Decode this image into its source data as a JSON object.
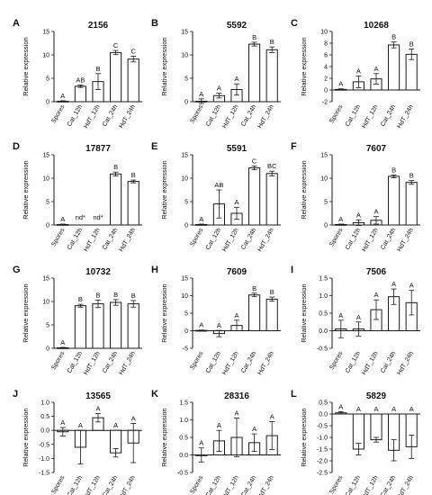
{
  "figure": {
    "ylabel": "Relative expression",
    "categories": [
      "Spores",
      "Cat_12h",
      "HdT_12h",
      "Cat_24h",
      "HdT_24h"
    ],
    "colors": {
      "bar": "#ffffff",
      "stroke": "#1a1a1a",
      "text": "#111111"
    }
  },
  "chart_data": [
    {
      "type": "bar",
      "panel": "A",
      "title": "2156",
      "ylim": [
        0,
        15
      ],
      "yticks": [
        0,
        5,
        10,
        15
      ],
      "values": [
        0.1,
        3.3,
        4.3,
        10.5,
        9.1
      ],
      "errors": [
        0.1,
        0.25,
        1.7,
        0.45,
        0.6
      ],
      "letters": [
        "A",
        "AB",
        "B",
        "C",
        "C"
      ]
    },
    {
      "type": "bar",
      "panel": "B",
      "title": "5592",
      "ylim": [
        0,
        15
      ],
      "yticks": [
        0,
        5,
        10,
        15
      ],
      "values": [
        0.1,
        1.3,
        2.6,
        12.3,
        11.1
      ],
      "errors": [
        0.5,
        0.5,
        1.2,
        0.4,
        0.6
      ],
      "letters": [
        "A",
        "A",
        "A",
        "B",
        "B"
      ]
    },
    {
      "type": "bar",
      "panel": "C",
      "title": "10268",
      "ylim": [
        -2,
        10
      ],
      "yticks": [
        -2,
        0,
        2,
        4,
        6,
        8,
        10
      ],
      "values": [
        0.1,
        1.4,
        1.9,
        7.7,
        6.1
      ],
      "errors": [
        0.1,
        1.0,
        0.9,
        0.5,
        0.9
      ],
      "letters": [
        "A",
        "A",
        "A",
        "B",
        "B"
      ]
    },
    {
      "type": "bar",
      "panel": "D",
      "title": "17877",
      "ylim": [
        0,
        15
      ],
      "yticks": [
        0,
        5,
        10,
        15
      ],
      "values": [
        0.1,
        null,
        null,
        10.9,
        9.3
      ],
      "errors": [
        0.1,
        null,
        null,
        0.4,
        0.3
      ],
      "letters": [
        "A",
        "nd*",
        "nd*",
        "B",
        "B"
      ]
    },
    {
      "type": "bar",
      "panel": "E",
      "title": "5591",
      "ylim": [
        0,
        15
      ],
      "yticks": [
        0,
        5,
        10,
        15
      ],
      "values": [
        0.1,
        4.5,
        2.5,
        12.2,
        11.0
      ],
      "errors": [
        0.1,
        3.0,
        1.3,
        0.4,
        0.5
      ],
      "letters": [
        "A",
        "AB",
        "A",
        "C",
        "BC"
      ]
    },
    {
      "type": "bar",
      "panel": "F",
      "title": "7607",
      "ylim": [
        0,
        15
      ],
      "yticks": [
        0,
        5,
        10,
        15
      ],
      "values": [
        0.1,
        0.5,
        1.0,
        10.4,
        9.1
      ],
      "errors": [
        0.1,
        0.6,
        0.8,
        0.3,
        0.4
      ],
      "letters": [
        "A",
        "A",
        "A",
        "B",
        "B"
      ]
    },
    {
      "type": "bar",
      "panel": "G",
      "title": "10732",
      "ylim": [
        0,
        15
      ],
      "yticks": [
        0,
        5,
        10,
        15
      ],
      "values": [
        0.1,
        9.1,
        9.5,
        9.8,
        9.5
      ],
      "errors": [
        0.1,
        0.3,
        0.8,
        0.6,
        0.7
      ],
      "letters": [
        "A",
        "B",
        "B",
        "B",
        "B"
      ]
    },
    {
      "type": "bar",
      "panel": "H",
      "title": "7609",
      "ylim": [
        -5,
        15
      ],
      "yticks": [
        -5,
        0,
        5,
        10,
        15
      ],
      "values": [
        0.1,
        -0.8,
        1.5,
        10.2,
        9.0
      ],
      "errors": [
        0.1,
        0.9,
        1.5,
        0.5,
        0.6
      ],
      "letters": [
        "A",
        "A",
        "A",
        "B",
        "B"
      ]
    },
    {
      "type": "bar",
      "panel": "I",
      "title": "7506",
      "ylim": [
        -0.5,
        1.5
      ],
      "yticks": [
        -0.5,
        0.0,
        0.5,
        1.0,
        1.5
      ],
      "values": [
        0.05,
        0.05,
        0.6,
        0.97,
        0.8
      ],
      "errors": [
        0.25,
        0.2,
        0.28,
        0.22,
        0.35
      ],
      "letters": [
        "A",
        "A",
        "A",
        "A",
        "A"
      ]
    },
    {
      "type": "bar",
      "panel": "J",
      "title": "13565",
      "ylim": [
        -1.5,
        1.0
      ],
      "yticks": [
        -1.5,
        -1.0,
        -0.5,
        0.0,
        0.5,
        1.0
      ],
      "values": [
        -0.05,
        -0.6,
        0.45,
        -0.8,
        -0.45
      ],
      "errors": [
        0.15,
        0.6,
        0.15,
        0.15,
        0.7
      ],
      "letters": [
        "A",
        "A",
        "A",
        "A",
        "A"
      ]
    },
    {
      "type": "bar",
      "panel": "K",
      "title": "28316",
      "ylim": [
        -0.5,
        1.5
      ],
      "yticks": [
        -0.5,
        0.0,
        0.5,
        1.0,
        1.5
      ],
      "values": [
        0.0,
        0.4,
        0.5,
        0.35,
        0.55
      ],
      "errors": [
        0.2,
        0.3,
        0.55,
        0.25,
        0.4
      ],
      "letters": [
        "A",
        "A",
        "A",
        "A",
        "A"
      ]
    },
    {
      "type": "bar",
      "panel": "L",
      "title": "5829",
      "ylim": [
        -2.5,
        0.5
      ],
      "yticks": [
        -2.5,
        -2.0,
        -1.5,
        -1.0,
        -0.5,
        0.0,
        0.5
      ],
      "values": [
        0.05,
        -1.5,
        -1.1,
        -1.55,
        -1.4
      ],
      "errors": [
        0.05,
        0.25,
        0.1,
        0.45,
        0.5
      ],
      "letters": [
        "A",
        "A",
        "A",
        "A",
        "A"
      ]
    }
  ]
}
